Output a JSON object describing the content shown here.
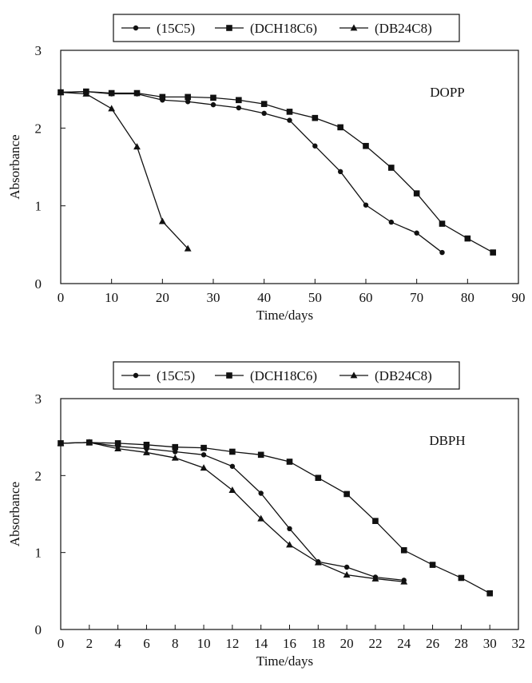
{
  "chart_data": [
    {
      "type": "line",
      "title": "",
      "annotation": "DOPP",
      "xlabel": "Time/days",
      "ylabel": "Absorbance",
      "xlim": [
        0,
        90
      ],
      "ylim": [
        0,
        3
      ],
      "xticks": [
        0,
        10,
        20,
        30,
        40,
        50,
        60,
        70,
        80,
        90
      ],
      "yticks": [
        0,
        1,
        2,
        3
      ],
      "grid": false,
      "legend": "top-center",
      "series": [
        {
          "name": "(15C5)",
          "marker": "circle",
          "x": [
            0,
            5,
            10,
            15,
            20,
            25,
            30,
            35,
            40,
            45,
            50,
            55,
            60,
            65,
            70,
            75
          ],
          "y": [
            2.46,
            2.47,
            2.44,
            2.44,
            2.36,
            2.34,
            2.3,
            2.26,
            2.19,
            2.1,
            1.77,
            1.44,
            1.01,
            0.79,
            0.65,
            0.4
          ]
        },
        {
          "name": "(DCH18C6)",
          "marker": "square",
          "x": [
            0,
            5,
            10,
            15,
            20,
            25,
            30,
            35,
            40,
            45,
            50,
            55,
            60,
            65,
            70,
            75,
            80,
            85
          ],
          "y": [
            2.46,
            2.47,
            2.45,
            2.45,
            2.4,
            2.4,
            2.39,
            2.36,
            2.31,
            2.21,
            2.13,
            2.01,
            1.77,
            1.49,
            1.16,
            0.77,
            0.58,
            0.4
          ]
        },
        {
          "name": "(DB24C8)",
          "marker": "triangle",
          "x": [
            0,
            5,
            10,
            15,
            20,
            25
          ],
          "y": [
            2.46,
            2.44,
            2.25,
            1.76,
            0.8,
            0.45
          ]
        }
      ]
    },
    {
      "type": "line",
      "title": "",
      "annotation": "DBPH",
      "xlabel": "Time/days",
      "ylabel": "Absorbance",
      "xlim": [
        0,
        32
      ],
      "ylim": [
        0,
        3
      ],
      "xticks": [
        0,
        2,
        4,
        6,
        8,
        10,
        12,
        14,
        16,
        18,
        20,
        22,
        24,
        26,
        28,
        30,
        32
      ],
      "yticks": [
        0,
        1,
        2,
        3
      ],
      "grid": false,
      "legend": "top-center",
      "series": [
        {
          "name": "(15C5)",
          "marker": "circle",
          "x": [
            0,
            2,
            4,
            6,
            8,
            10,
            12,
            14,
            16,
            18,
            20,
            22,
            24
          ],
          "y": [
            2.42,
            2.43,
            2.38,
            2.35,
            2.31,
            2.27,
            2.12,
            1.77,
            1.31,
            0.88,
            0.81,
            0.68,
            0.64
          ]
        },
        {
          "name": "(DCH18C6)",
          "marker": "square",
          "x": [
            0,
            2,
            4,
            6,
            8,
            10,
            12,
            14,
            16,
            18,
            20,
            22,
            24,
            26,
            28,
            30
          ],
          "y": [
            2.42,
            2.43,
            2.42,
            2.4,
            2.37,
            2.36,
            2.31,
            2.27,
            2.18,
            1.97,
            1.76,
            1.41,
            1.03,
            0.84,
            0.67,
            0.47
          ]
        },
        {
          "name": "(DB24C8)",
          "marker": "triangle",
          "x": [
            0,
            2,
            4,
            6,
            8,
            10,
            12,
            14,
            16,
            18,
            20,
            22,
            24
          ],
          "y": [
            2.42,
            2.43,
            2.35,
            2.3,
            2.23,
            2.1,
            1.81,
            1.44,
            1.1,
            0.87,
            0.71,
            0.66,
            0.62
          ]
        }
      ]
    }
  ]
}
